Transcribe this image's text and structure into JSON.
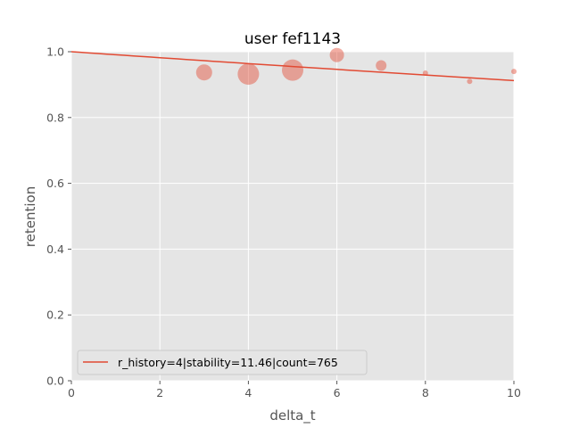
{
  "chart_data": {
    "type": "scatter",
    "title": "user fef1143",
    "xlabel": "delta_t",
    "ylabel": "retention",
    "xlim": [
      0,
      10
    ],
    "ylim": [
      0,
      1.0
    ],
    "xticks": [
      0,
      2,
      4,
      6,
      8,
      10
    ],
    "yticks": [
      0.0,
      0.2,
      0.4,
      0.6,
      0.8,
      1.0
    ],
    "xtick_labels": [
      "0",
      "2",
      "4",
      "6",
      "8",
      "10"
    ],
    "ytick_labels": [
      "0.0",
      "0.2",
      "0.4",
      "0.6",
      "0.8",
      "1.0"
    ],
    "grid": true,
    "legend_position": "lower-left",
    "points": [
      {
        "x": 3,
        "y": 0.937,
        "size": 9
      },
      {
        "x": 4,
        "y": 0.932,
        "size": 12
      },
      {
        "x": 5,
        "y": 0.944,
        "size": 12
      },
      {
        "x": 6,
        "y": 0.99,
        "size": 8
      },
      {
        "x": 7,
        "y": 0.958,
        "size": 6
      },
      {
        "x": 8,
        "y": 0.935,
        "size": 3
      },
      {
        "x": 9,
        "y": 0.91,
        "size": 3
      },
      {
        "x": 10,
        "y": 0.94,
        "size": 3
      }
    ],
    "fit_line": {
      "label": "r_history=4|stability=11.46|count=765",
      "stability": 11.46,
      "x_start": 0,
      "x_end": 10
    },
    "colors": {
      "line": "#e24a33",
      "points": "#e24a33",
      "plot_bg": "#e5e5e5",
      "grid": "#ffffff"
    }
  }
}
